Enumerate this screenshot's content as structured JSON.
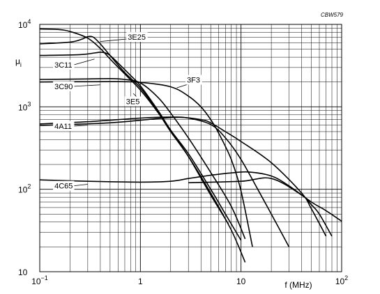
{
  "chart_data": {
    "type": "line",
    "code": "CBW579",
    "title": "",
    "xlabel": "f (MHz)",
    "ylabel": "μi",
    "xscale": "log",
    "yscale": "log",
    "xlim": [
      0.1,
      100
    ],
    "ylim": [
      10,
      10000
    ],
    "grid": true,
    "x_tick_labels": [
      {
        "value": 0.1,
        "base": "10",
        "exp": "−1"
      },
      {
        "value": 1,
        "base": "1",
        "exp": ""
      },
      {
        "value": 10,
        "base": "10",
        "exp": ""
      },
      {
        "value": 100,
        "base": "10",
        "exp": "2"
      }
    ],
    "y_tick_labels": [
      {
        "value": 10,
        "base": "10",
        "exp": ""
      },
      {
        "value": 100,
        "base": "10",
        "exp": "2"
      },
      {
        "value": 1000,
        "base": "10",
        "exp": "3"
      },
      {
        "value": 10000,
        "base": "10",
        "exp": "4"
      }
    ],
    "series": [
      {
        "name": "3E25",
        "x": [
          0.1,
          0.2,
          0.26,
          0.3,
          0.34,
          0.4,
          0.5,
          0.7,
          1,
          1.5,
          2,
          3,
          5,
          7,
          10
        ],
        "y": [
          5800,
          6100,
          6600,
          7100,
          7000,
          5800,
          4200,
          2600,
          1700,
          880,
          520,
          270,
          100,
          50,
          24
        ]
      },
      {
        "name": "3C11",
        "x": [
          0.1,
          0.25,
          0.35,
          0.4,
          0.45,
          0.5,
          0.6,
          0.8,
          1,
          1.5,
          2,
          3,
          5,
          7.5
        ],
        "y": [
          4200,
          4300,
          4500,
          4600,
          4500,
          4200,
          3400,
          2400,
          1800,
          900,
          520,
          250,
          85,
          38
        ]
      },
      {
        "name": "3C90",
        "x": [
          0.1,
          0.3,
          0.5,
          0.7,
          1,
          1.5,
          2,
          3,
          5,
          8,
          11
        ],
        "y": [
          2150,
          2180,
          2200,
          2150,
          1950,
          1300,
          840,
          420,
          160,
          62,
          25
        ]
      },
      {
        "name": "3E5",
        "x": [
          0.1,
          0.15,
          0.2,
          0.3,
          0.4,
          0.5,
          0.7,
          1,
          1.5,
          2,
          3,
          5,
          8,
          11
        ],
        "y": [
          8800,
          8700,
          8200,
          6800,
          5100,
          3800,
          2500,
          1600,
          850,
          500,
          250,
          90,
          32,
          13
        ]
      },
      {
        "name": "3F3",
        "x": [
          0.1,
          0.5,
          1,
          2,
          3,
          4,
          5,
          6,
          8,
          10,
          13
        ],
        "y": [
          2000,
          2020,
          1980,
          1750,
          1350,
          1000,
          700,
          480,
          230,
          95,
          20
        ]
      },
      {
        "name": "4A11",
        "x": [
          0.1,
          0.3,
          1,
          2,
          3,
          5,
          7,
          10,
          15,
          20,
          30
        ],
        "y": [
          620,
          660,
          730,
          750,
          730,
          610,
          420,
          230,
          95,
          50,
          20
        ]
      },
      {
        "name": "—",
        "x": [
          0.1,
          0.5,
          1.5,
          2.5,
          4,
          5,
          7,
          10,
          20,
          40,
          50,
          70
        ],
        "y": [
          595,
          640,
          720,
          745,
          700,
          640,
          500,
          380,
          210,
          90,
          58,
          27
        ]
      },
      {
        "name": "4C65",
        "x": [
          0.1,
          0.3,
          1,
          2,
          3,
          5,
          8,
          12,
          20,
          30,
          50,
          70,
          100
        ],
        "y": [
          130,
          125,
          122,
          125,
          135,
          148,
          158,
          162,
          145,
          110,
          70,
          55,
          41
        ]
      },
      {
        "name": "—",
        "x": [
          3,
          10,
          20,
          40,
          50,
          60,
          80
        ],
        "y": [
          120,
          125,
          135,
          85,
          65,
          50,
          27
        ]
      }
    ],
    "series_labels": [
      {
        "text": "3E25",
        "x": 0.75,
        "y": 6500,
        "leader_x": 0.4,
        "leader_y": 6200
      },
      {
        "text": "3C11",
        "x": 0.14,
        "y": 3000,
        "leader_x": 0.35,
        "leader_y": 3800
      },
      {
        "text": "3C90",
        "x": 0.14,
        "y": 1640,
        "leader_x": 0.4,
        "leader_y": 1850
      },
      {
        "text": "3E5",
        "x": 0.72,
        "y": 1080,
        "leader_x": 0.85,
        "leader_y": 1450
      },
      {
        "text": "3F3",
        "x": 2.9,
        "y": 1970,
        "leader_x": 2.3,
        "leader_y": 1700
      },
      {
        "text": "4A11",
        "x": 0.14,
        "y": 540,
        "leader_x": 0.3,
        "leader_y": 600
      },
      {
        "text": "4C65",
        "x": 0.14,
        "y": 102,
        "leader_x": 0.3,
        "leader_y": 115
      }
    ]
  }
}
